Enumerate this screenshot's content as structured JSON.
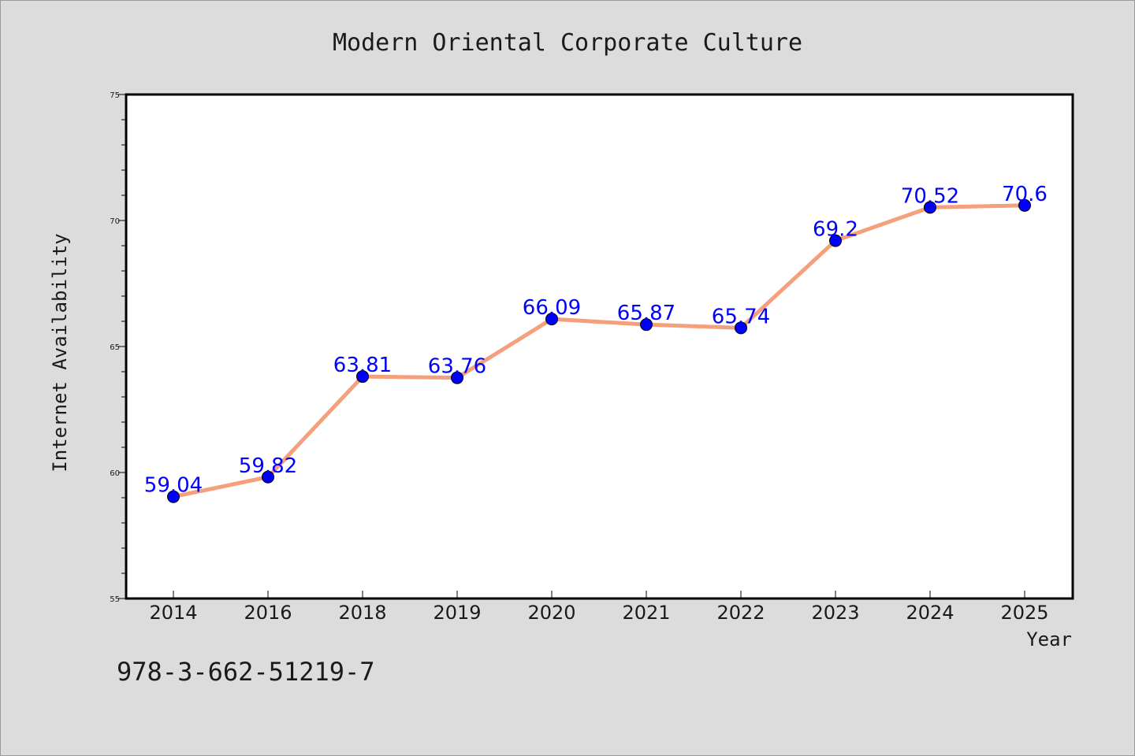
{
  "chart_data": {
    "type": "line",
    "title": "Modern Oriental Corporate Culture",
    "xlabel": "Year",
    "ylabel": "Internet Availability",
    "categories": [
      "2014",
      "2016",
      "2018",
      "2019",
      "2020",
      "2021",
      "2022",
      "2023",
      "2024",
      "2025"
    ],
    "series": [
      {
        "values": [
          59.04,
          59.82,
          63.81,
          63.76,
          66.09,
          65.87,
          65.74,
          69.2,
          70.52,
          70.6
        ],
        "data_labels": [
          "59.04",
          "59.82",
          "63.81",
          "63.76",
          "66.09",
          "65.87",
          "65.74",
          "69.2",
          "70.52",
          "70.6"
        ],
        "line_color": "#f4a07c",
        "marker_color": "#0000ff",
        "label_color": "#0000ff"
      }
    ],
    "ylim": [
      55,
      75
    ],
    "y_ticks": [
      "55",
      "60",
      "65",
      "70",
      "75"
    ],
    "grid": false,
    "legend": "none"
  },
  "annotation": {
    "code": "978-3-662-51219-7"
  },
  "colors": {
    "background": "#dcdcdc",
    "plot_background": "#ffffff",
    "axis": "#000000"
  }
}
